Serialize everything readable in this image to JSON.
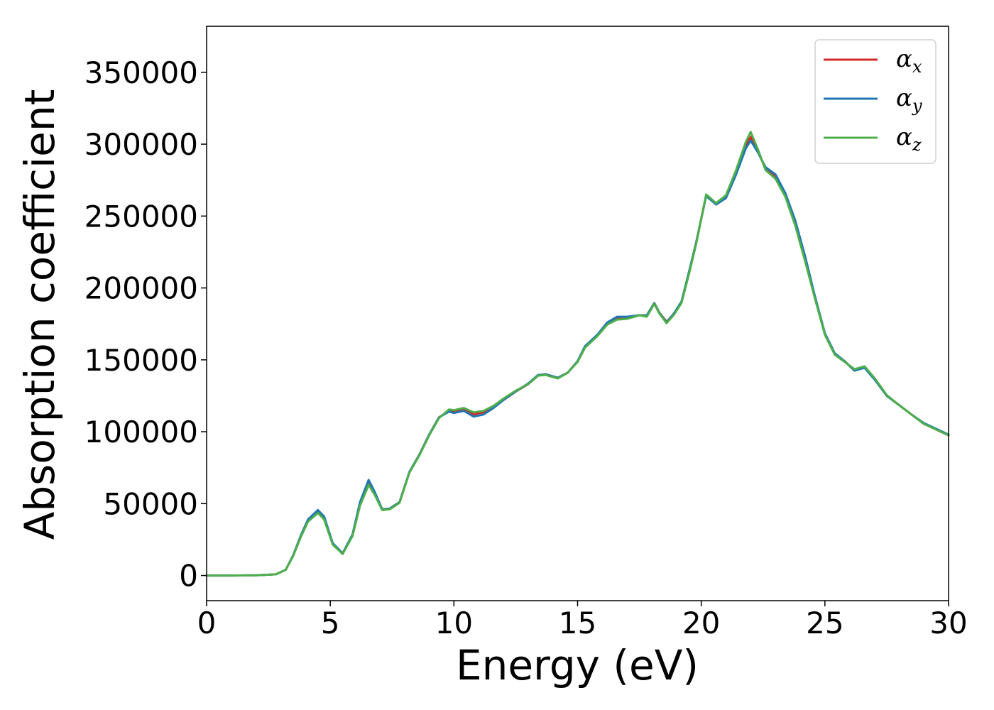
{
  "chart_data": {
    "type": "line",
    "title": "",
    "xlabel": "Energy (eV)",
    "ylabel": "Absorption coefficient",
    "xlim": [
      0,
      30
    ],
    "ylim": [
      -17500,
      382000
    ],
    "xticks": [
      0,
      5,
      10,
      15,
      20,
      25,
      30
    ],
    "yticks": [
      0,
      50000,
      100000,
      150000,
      200000,
      250000,
      300000,
      350000
    ],
    "grid": false,
    "legend_position": "top-right",
    "x": [
      0,
      1,
      2,
      2.8,
      3.2,
      3.5,
      3.8,
      4.1,
      4.5,
      4.75,
      5.1,
      5.5,
      5.9,
      6.2,
      6.55,
      6.8,
      7.1,
      7.4,
      7.8,
      8.2,
      8.6,
      9.0,
      9.4,
      9.8,
      10.0,
      10.4,
      10.8,
      11.2,
      11.6,
      12.0,
      12.5,
      13.0,
      13.4,
      13.7,
      14.2,
      14.6,
      15.0,
      15.3,
      15.8,
      16.2,
      16.6,
      17.0,
      17.5,
      17.8,
      18.1,
      18.3,
      18.6,
      18.9,
      19.2,
      19.5,
      19.8,
      20.2,
      20.6,
      21.0,
      21.4,
      21.8,
      22.0,
      22.3,
      22.6,
      23.0,
      23.4,
      23.8,
      24.2,
      24.6,
      25.0,
      25.4,
      25.8,
      26.2,
      26.6,
      27.0,
      27.5,
      28.0,
      28.5,
      29.0,
      29.5,
      30.0
    ],
    "series": [
      {
        "name": "α_x",
        "color": "#d62728",
        "values": [
          0,
          0,
          200,
          800,
          4000,
          14000,
          27000,
          38000,
          44500,
          40000,
          22000,
          15000,
          28000,
          50000,
          65000,
          57000,
          46000,
          46500,
          51000,
          72000,
          84000,
          98000,
          110000,
          114500,
          113500,
          115500,
          112000,
          113500,
          117000,
          122000,
          128000,
          133000,
          139000,
          140000,
          137500,
          141000,
          149000,
          159000,
          167000,
          175000,
          179500,
          179500,
          181000,
          180500,
          189500,
          183000,
          176500,
          182000,
          190000,
          210000,
          232000,
          264500,
          258500,
          263500,
          280000,
          299000,
          305000,
          294500,
          283000,
          278000,
          265000,
          245000,
          220000,
          193000,
          168000,
          154000,
          149000,
          142500,
          145000,
          137000,
          125000,
          118500,
          112000,
          105500,
          101500,
          97500
        ]
      },
      {
        "name": "α_y",
        "color": "#1f77b4",
        "values": [
          0,
          0,
          200,
          800,
          4000,
          14000,
          27500,
          39000,
          45500,
          41000,
          22500,
          15500,
          28500,
          51000,
          66500,
          58000,
          46000,
          46500,
          51000,
          72000,
          84000,
          98000,
          110000,
          114000,
          113000,
          114500,
          110500,
          112000,
          116500,
          122000,
          128000,
          133500,
          139500,
          140000,
          137500,
          141000,
          149000,
          159500,
          167500,
          176000,
          180000,
          180000,
          181000,
          181000,
          189500,
          183000,
          176000,
          182500,
          190500,
          211000,
          232000,
          264000,
          258000,
          262500,
          278500,
          297000,
          302500,
          294000,
          284000,
          279000,
          266000,
          247000,
          222000,
          194000,
          168500,
          154500,
          149000,
          142500,
          144500,
          136500,
          125000,
          118500,
          112000,
          106000,
          102000,
          98000
        ]
      },
      {
        "name": "α_z",
        "color": "#4daf4a",
        "values": [
          0,
          0,
          200,
          800,
          4000,
          13500,
          26500,
          37500,
          43500,
          39000,
          21500,
          15000,
          27500,
          48500,
          63000,
          56000,
          45500,
          46000,
          50500,
          71500,
          83500,
          97500,
          109500,
          115500,
          115000,
          116500,
          113500,
          114500,
          118000,
          123000,
          128500,
          133000,
          139000,
          139500,
          137000,
          141000,
          148500,
          158500,
          166500,
          174500,
          178000,
          178500,
          181000,
          180000,
          189000,
          182500,
          175500,
          181500,
          189500,
          209500,
          231000,
          265000,
          259000,
          264500,
          281500,
          301500,
          308500,
          296000,
          282000,
          276000,
          263500,
          243500,
          218500,
          192500,
          167500,
          153500,
          148500,
          143500,
          145500,
          137500,
          125500,
          118500,
          112000,
          105500,
          101500,
          97500
        ]
      }
    ]
  }
}
